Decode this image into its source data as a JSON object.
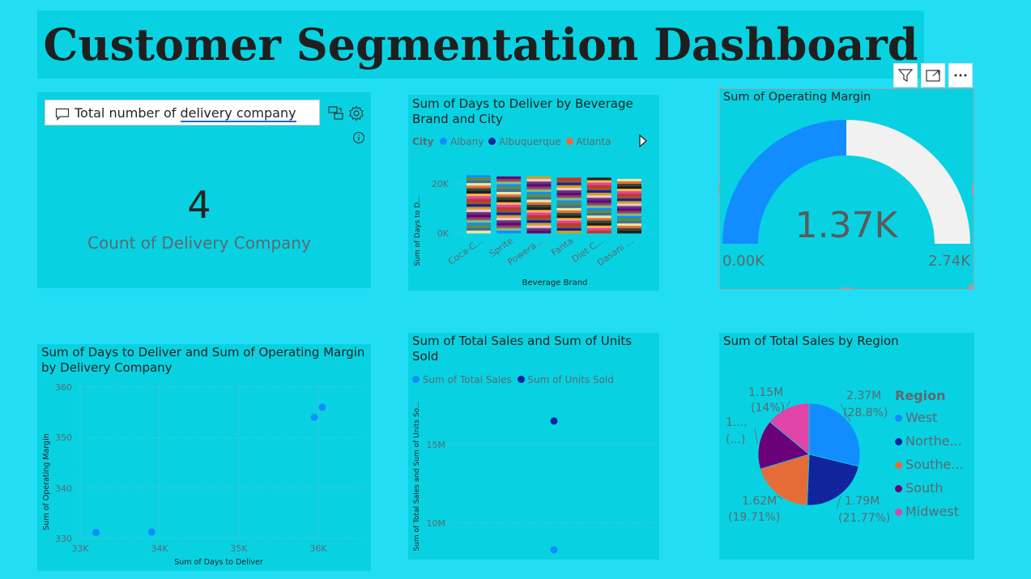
{
  "page_title": "Customer Segmentation Dashboard",
  "qa": {
    "question_prefix": "Total number of ",
    "question_term": "delivery company"
  },
  "card": {
    "value": "4",
    "label": "Count of Delivery Company"
  },
  "bar_visual": {
    "title": "Sum of Days to Deliver by Beverage Brand and City",
    "title_line1": "Sum of Days to Deliver by Beverage",
    "title_line2": "Brand and City",
    "legend_title": "City",
    "legend_items": [
      "Albany",
      "Albuquerque",
      "Atlanta"
    ],
    "xlabel": "Beverage Brand",
    "ylabel": "Sum of Days to D...",
    "yticks": [
      "20K",
      "0K"
    ]
  },
  "gauge_visual": {
    "title": "Sum of Operating Margin",
    "value_label": "1.37K",
    "min_label": "0.00K",
    "max_label": "2.74K"
  },
  "scatter_visual": {
    "title_line1": "Sum of Days to Deliver and Sum of Operating Margin",
    "title_line2": "by Delivery Company",
    "xlabel": "Sum of Days to Deliver",
    "ylabel": "Sum of Operating Margin",
    "xticks": [
      "33K",
      "34K",
      "35K",
      "36K"
    ],
    "yticks": [
      "360",
      "350",
      "340",
      "330"
    ]
  },
  "units_visual": {
    "title_line1": "Sum of Total Sales and Sum of Units",
    "title_line2": "Sold",
    "legend_items": [
      "Sum of Total Sales",
      "Sum of Units Sold"
    ],
    "ylabel": "Sum of Total Sales and Sum of Units So...",
    "yticks": [
      "15M",
      "10M"
    ]
  },
  "pie_visual": {
    "title": "Sum of Total Sales by Region",
    "legend_title": "Region",
    "legend_items": [
      "West",
      "Northe...",
      "Southe...",
      "South",
      "Midwest"
    ],
    "labels": [
      {
        "value": "2.37M",
        "pct": "(28.8%)"
      },
      {
        "value": "1.79M",
        "pct": "(21.77%)"
      },
      {
        "value": "1.62M",
        "pct": "(19.71%)"
      },
      {
        "value": "1....",
        "pct": "(...)"
      },
      {
        "value": "1.15M",
        "pct": "(14%)"
      }
    ]
  },
  "colors": {
    "background": "#23DDF5",
    "panel": "#08D2E2",
    "series_blue": "#118DFF",
    "series_navy": "#12239E",
    "series_orange": "#E66C37",
    "series_purple": "#6B007B",
    "series_pink": "#E044A7",
    "gauge_remainder": "#F1F1F1"
  },
  "chart_data": [
    {
      "type": "bar",
      "stacked": true,
      "title": "Sum of Days to Deliver by Beverage Brand and City",
      "categories": [
        "Coca-C...",
        "Sprite",
        "Powera...",
        "Fanta",
        "Diet C...",
        "Dasani ..."
      ],
      "values": [
        23500,
        23000,
        23000,
        22500,
        22500,
        22000
      ],
      "xlabel": "Beverage Brand",
      "ylabel": "Sum of Days to D...",
      "ylim": [
        0,
        30000
      ],
      "legend": "top-left"
    },
    {
      "type": "gauge",
      "title": "Sum of Operating Margin",
      "value": 1370,
      "min": 0,
      "max": 2740
    },
    {
      "type": "scatter",
      "title": "Sum of Days to Deliver and Sum of Operating Margin by Delivery Company",
      "x": [
        33200,
        33900,
        35950,
        36050
      ],
      "y": [
        331.2,
        331.3,
        354.0,
        356.0
      ],
      "xlabel": "Sum of Days to Deliver",
      "ylabel": "Sum of Operating Margin",
      "xlim": [
        33000,
        36500
      ],
      "ylim": [
        330,
        360
      ],
      "grid": true
    },
    {
      "type": "scatter",
      "title": "Sum of Total Sales and Sum of Units Sold",
      "series": [
        {
          "name": "Sum of Total Sales",
          "values": [
            8300000
          ]
        },
        {
          "name": "Sum of Units Sold",
          "values": [
            16500000
          ]
        }
      ],
      "ylabel": "Sum of Total Sales and Sum of Units So...",
      "ylim": [
        8000000,
        18000000
      ],
      "legend": "top-left"
    },
    {
      "type": "pie",
      "title": "Sum of Total Sales by Region",
      "categories": [
        "West",
        "Northeast",
        "Southeast",
        "South",
        "Midwest"
      ],
      "values": [
        2.37,
        1.79,
        1.62,
        1.29,
        1.15
      ],
      "percentages": [
        28.8,
        21.77,
        19.71,
        15.72,
        14.0
      ],
      "legend": "right"
    }
  ]
}
